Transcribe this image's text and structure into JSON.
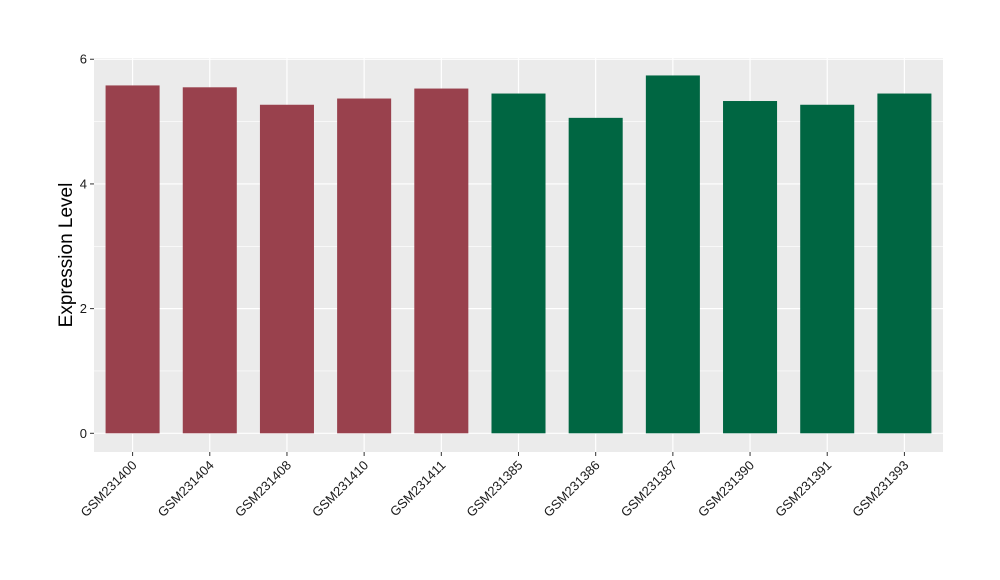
{
  "chart_data": {
    "type": "bar",
    "title": "",
    "xlabel": "",
    "ylabel": "Expression Level",
    "ylim": [
      -0.3,
      6.02
    ],
    "yticks": [
      0,
      2,
      4,
      6
    ],
    "grid": true,
    "legend": "none",
    "categories": [
      "GSM231400",
      "GSM231404",
      "GSM231408",
      "GSM231410",
      "GSM231411",
      "GSM231385",
      "GSM231386",
      "GSM231387",
      "GSM231390",
      "GSM231391",
      "GSM231393"
    ],
    "values": [
      5.58,
      5.55,
      5.27,
      5.37,
      5.53,
      5.45,
      5.06,
      5.74,
      5.33,
      5.27,
      5.45
    ],
    "bar_colors": [
      "#99414d",
      "#99414d",
      "#99414d",
      "#99414d",
      "#99414d",
      "#006642",
      "#006642",
      "#006642",
      "#006642",
      "#006642",
      "#006642"
    ],
    "panel_background": "#ebebeb",
    "gridline_color": "#ffffff"
  }
}
